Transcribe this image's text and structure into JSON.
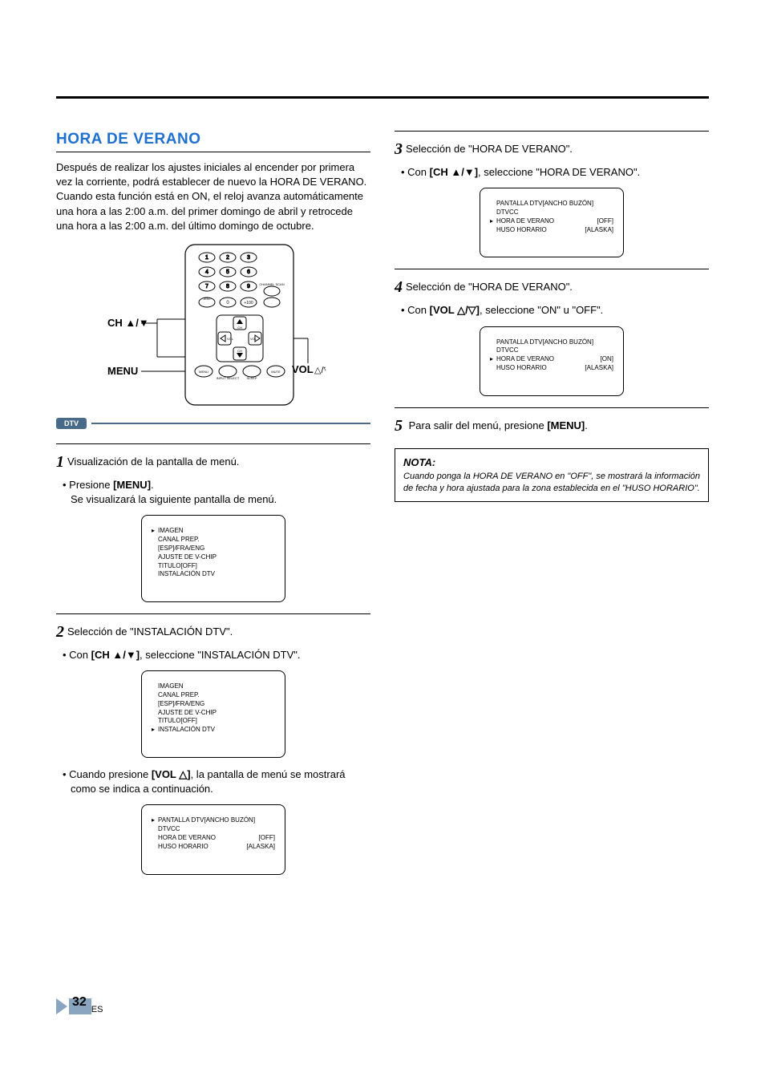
{
  "title": "HORA DE VERANO",
  "intro": "Después de realizar los ajustes iniciales al encender por primera vez la corriente, podrá establecer de nuevo la HORA DE VERANO. Cuando esta función está en ON, el reloj avanza automáticamente una hora a las 2:00 a.m. del primer domingo de abril y retrocede una hora a las 2:00 a.m. del último domingo de octubre.",
  "remote": {
    "ch_label": "CH ▲/▼",
    "menu_label": "MENU",
    "vol_label": "VOL △/▽",
    "btn_channel_scan": "CHANNEL SCAN",
    "btn_plus100": "+100",
    "btn_menu": "MENU",
    "btn_input": "INPUT SELECT",
    "btn_sleep": "SLEEP",
    "btn_mute": "MUTE",
    "ch_up": "CH",
    "ch_dn": "CH",
    "vol_dn": "VOL",
    "vol_up": "VOL"
  },
  "dtv_badge": "DTV",
  "steps": {
    "1": {
      "head": "Visualización de la pantalla de menú.",
      "bullet_a": "Presione ",
      "bullet_a_bold": "[MENU]",
      "bullet_a_tail": ".",
      "bullet_a_line2": "Se visualizará la siguiente pantalla de menú."
    },
    "2": {
      "head": "Selección de \"INSTALACIÓN DTV\".",
      "bullet_a_pre": "Con ",
      "bullet_a_bold": "[CH ▲/▼]",
      "bullet_a_tail": ", seleccione \"INSTALACIÓN DTV\".",
      "bullet_b_pre": "Cuando presione ",
      "bullet_b_bold": "[VOL △]",
      "bullet_b_tail": ", la pantalla de menú se mostrará como se indica a continuación."
    },
    "3": {
      "head": "Selección de \"HORA DE VERANO\".",
      "bullet_a_pre": "Con ",
      "bullet_a_bold": "[CH ▲/▼]",
      "bullet_a_tail": ", seleccione \"HORA DE VERANO\"."
    },
    "4": {
      "head": "Selección de \"HORA DE VERANO\".",
      "bullet_a_pre": "Con ",
      "bullet_a_bold": "[VOL △/▽]",
      "bullet_a_tail": ", seleccione \"ON\" u \"OFF\"."
    },
    "5": {
      "head_pre": "Para salir del menú, presione ",
      "head_bold": "[MENU]",
      "head_tail": "."
    }
  },
  "menu1": {
    "items": [
      {
        "arrow": "▸",
        "label": "IMAGEN"
      },
      {
        "arrow": "",
        "label": "CANAL PREP."
      },
      {
        "arrow": "",
        "label": "[ESP]/FRA/ENG"
      },
      {
        "arrow": "",
        "label": "AJUSTE DE V-CHIP"
      },
      {
        "arrow": "",
        "label": "TITULO[OFF]"
      },
      {
        "arrow": "",
        "label": "INSTALACIÓN DTV"
      }
    ]
  },
  "menu2": {
    "items": [
      {
        "arrow": "",
        "label": "IMAGEN"
      },
      {
        "arrow": "",
        "label": "CANAL PREP."
      },
      {
        "arrow": "",
        "label": "[ESP]/FRA/ENG"
      },
      {
        "arrow": "",
        "label": "AJUSTE DE V-CHIP"
      },
      {
        "arrow": "",
        "label": "TITULO[OFF]"
      },
      {
        "arrow": "▸",
        "label": "INSTALACIÓN DTV"
      }
    ]
  },
  "menu3": {
    "items": [
      {
        "arrow": "▸",
        "label": "PANTALLA DTV[ANCHO BUZÓN]",
        "val": ""
      },
      {
        "arrow": "",
        "label": "DTVCC",
        "val": ""
      },
      {
        "arrow": "",
        "label": "HORA DE VERANO",
        "val": "[OFF]"
      },
      {
        "arrow": "",
        "label": "HUSO HORARIO",
        "val": "[ALASKA]"
      }
    ]
  },
  "menu4": {
    "items": [
      {
        "arrow": "",
        "label": "PANTALLA DTV[ANCHO BUZÓN]",
        "val": ""
      },
      {
        "arrow": "",
        "label": "DTVCC",
        "val": ""
      },
      {
        "arrow": "▸",
        "label": "HORA DE VERANO",
        "val": "[OFF]"
      },
      {
        "arrow": "",
        "label": "HUSO HORARIO",
        "val": "[ALASKA]"
      }
    ]
  },
  "menu5": {
    "items": [
      {
        "arrow": "",
        "label": "PANTALLA DTV[ANCHO BUZÓN]",
        "val": ""
      },
      {
        "arrow": "",
        "label": "DTVCC",
        "val": ""
      },
      {
        "arrow": "▸",
        "label": "HORA DE VERANO",
        "val": "[ON]"
      },
      {
        "arrow": "",
        "label": "HUSO HORARIO",
        "val": "[ALASKA]"
      }
    ]
  },
  "note": {
    "title": "NOTA:",
    "body": "Cuando ponga la HORA DE VERANO en \"OFF\", se mostrará la información de fecha y hora ajustada para la zona establecida en el \"HUSO HORARIO\"."
  },
  "page": {
    "num": "32",
    "suffix": "ES"
  }
}
